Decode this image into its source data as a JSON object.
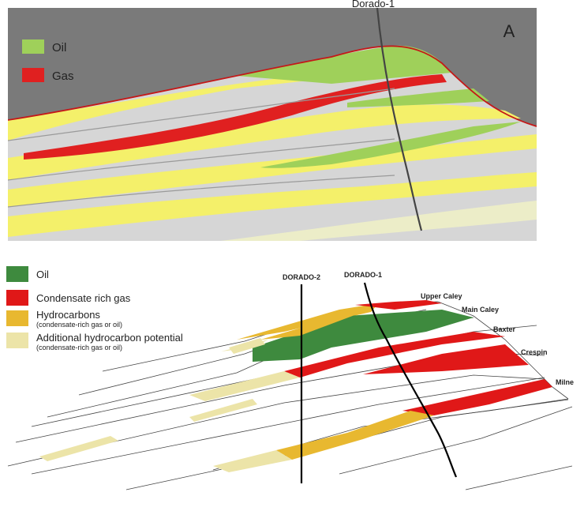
{
  "panel_a": {
    "well_label": "Dorado-1",
    "panel_letter": "A",
    "legend": [
      {
        "label": "Oil",
        "color": "#9fd05a"
      },
      {
        "label": "Gas",
        "color": "#e02020"
      }
    ],
    "colors": {
      "background": "#7a7a7a",
      "shale": "#d6d6d6",
      "sand": "#f4f06a",
      "oil": "#9fd05a",
      "gas": "#e02020",
      "pale": "#ecedc8"
    }
  },
  "panel_b": {
    "well_labels": [
      "DORADO-2",
      "DORADO-1"
    ],
    "legend": [
      {
        "label": "Oil",
        "sublabel": "",
        "color": "#3e8a3e"
      },
      {
        "label": "Condensate rich gas",
        "sublabel": "",
        "color": "#e01818"
      },
      {
        "label": "Hydrocarbons",
        "sublabel": "(condensate-rich gas or oil)",
        "color": "#e8b830"
      },
      {
        "label": "Additional hydrocarbon potential",
        "sublabel": "(condensate-rich gas or oil)",
        "color": "#ece4a8"
      }
    ],
    "horizons": [
      "Upper Caley",
      "Main Caley",
      "Baxter",
      "Crespin",
      "Milne"
    ]
  }
}
